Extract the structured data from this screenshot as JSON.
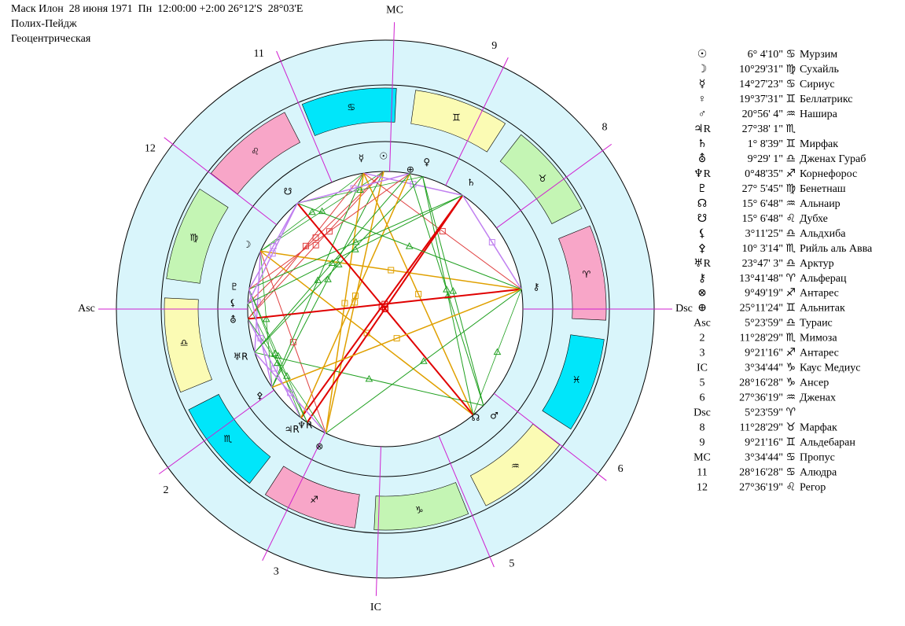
{
  "header": {
    "title": "Маск Илон  28 июня 1971  Пн  12:00:00 +2:00 26°12'S  28°03'E",
    "lines": [
      "Полих-Пейдж",
      "Геоцентрическая"
    ]
  },
  "wheel": {
    "signs": [
      "♈",
      "♉",
      "♊",
      "♋",
      "♌",
      "♍",
      "♎",
      "♏",
      "♐",
      "♑",
      "♒",
      "♓"
    ]
  },
  "table": {
    "rows": [
      {
        "symbol": "☉",
        "position": "6° 4'10\" ♋",
        "star": "Мурзим"
      },
      {
        "symbol": "☽",
        "position": "10°29'31\" ♍",
        "star": "Сухайль"
      },
      {
        "symbol": "☿",
        "position": "14°27'23\" ♋",
        "star": "Сириус"
      },
      {
        "symbol": "♀",
        "position": "19°37'31\" ♊",
        "star": "Беллатрикс"
      },
      {
        "symbol": "♂",
        "position": "20°56' 4\" ♒",
        "star": "Нашира"
      },
      {
        "symbol": "♃R",
        "position": "27°38' 1\" ♏"
      },
      {
        "symbol": "♄",
        "position": "1° 8'39\" ♊",
        "star": "Мирфак"
      },
      {
        "symbol": "⛢",
        "position": "9°29' 1\" ♎",
        "star": "Дженах Гураб"
      },
      {
        "symbol": "♆R",
        "position": "0°48'35\" ♐",
        "star": "Корнефорос"
      },
      {
        "symbol": "♇",
        "position": "27° 5'45\" ♍",
        "star": "Бенетнаш"
      },
      {
        "symbol": "☊",
        "position": "15° 6'48\" ♒",
        "star": "Альнаир"
      },
      {
        "symbol": "☋",
        "position": "15° 6'48\" ♌",
        "star": "Дубхе"
      },
      {
        "symbol": "⚸",
        "position": "3°11'25\" ♎",
        "star": "Альдхиба"
      },
      {
        "symbol": "⚴",
        "position": "10° 3'14\" ♏",
        "star": "Рийль аль Авва"
      },
      {
        "symbol": "♅R",
        "position": "23°47' 3\" ♎",
        "star": "Арктур"
      },
      {
        "symbol": "⚷",
        "position": "13°41'48\" ♈",
        "star": "Альферац"
      },
      {
        "symbol": "⊗",
        "position": "9°49'19\" ♐",
        "star": "Антарес"
      },
      {
        "symbol": "⊕",
        "position": "25°11'24\" ♊",
        "star": "Альнитак"
      },
      {
        "symbol": "Asc",
        "position": "5°23'59\" ♎",
        "star": "Тураис"
      },
      {
        "symbol": "2",
        "position": "11°28'29\" ♏",
        "star": "Мимоза"
      },
      {
        "symbol": "3",
        "position": "9°21'16\" ♐",
        "star": "Антарес"
      },
      {
        "symbol": "IC",
        "position": "3°34'44\" ♑",
        "star": "Каус Медиус"
      },
      {
        "symbol": "5",
        "position": "28°16'28\" ♑",
        "star": "Ансер"
      },
      {
        "symbol": "6",
        "position": "27°36'19\" ♒",
        "star": "Дженах"
      },
      {
        "symbol": "Dsc",
        "position": "5°23'59\" ♈"
      },
      {
        "symbol": "8",
        "position": "11°28'29\" ♉",
        "star": "Марфак"
      },
      {
        "symbol": "9",
        "position": "9°21'16\" ♊",
        "star": "Альдебаран"
      },
      {
        "symbol": "MC",
        "position": "3°34'44\" ♋",
        "star": "Пропус"
      },
      {
        "symbol": "11",
        "position": "28°16'28\" ♋",
        "star": "Алюдра"
      },
      {
        "symbol": "12",
        "position": "27°36'19\" ♌",
        "star": "Регор"
      }
    ]
  }
}
